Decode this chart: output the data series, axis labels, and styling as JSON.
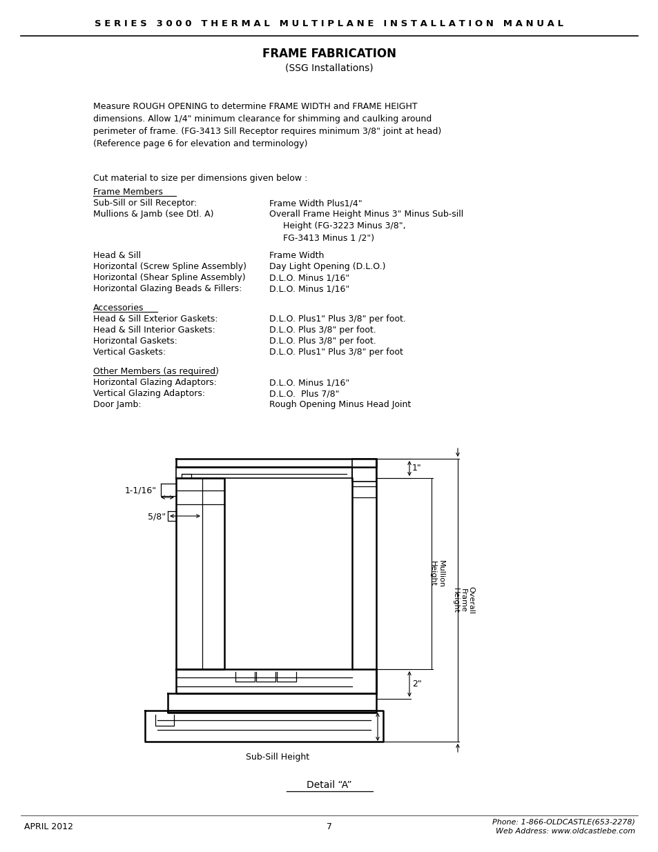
{
  "page_bg": "#ffffff",
  "header_text": "S E R I E S   3 0 0 0   T H E R M A L   M U L T I P L A N E   I N S T A L L A T I O N   M A N U A L",
  "title1": "FRAME FABRICATION",
  "title2": "(SSG Installations)",
  "para1": "Measure ROUGH OPENING to determine FRAME WIDTH and FRAME HEIGHT\ndimensions. Allow 1/4\" minimum clearance for shimming and caulking around\nperimeter of frame. (FG-3413 Sill Receptor requires minimum 3/8\" joint at head)\n(Reference page 6 for elevation and terminology)",
  "cut_intro": "Cut material to size per dimensions given below :",
  "section1_header": "Frame Members",
  "rows1": [
    [
      "Sub-Sill or Sill Receptor:",
      "Frame Width Plus1/4\""
    ],
    [
      "Mullions & Jamb (see Dtl. A)",
      "Overall Frame Height Minus 3\" Minus Sub-sill\n     Height (FG-3223 Minus 3/8\",\n     FG-3413 Minus 1 /2\")"
    ]
  ],
  "rows2": [
    [
      "Head & Sill",
      "Frame Width"
    ],
    [
      "Horizontal (Screw Spline Assembly)",
      "Day Light Opening (D.L.O.)"
    ],
    [
      "Horizontal (Shear Spline Assembly)",
      "D.L.O. Minus 1/16\""
    ],
    [
      "Horizontal Glazing Beads & Fillers:",
      "D.L.O. Minus 1/16\""
    ]
  ],
  "section2_header": "Accessories",
  "rows3": [
    [
      "Head & Sill Exterior Gaskets:",
      "D.L.O. Plus1\" Plus 3/8\" per foot."
    ],
    [
      "Head & Sill Interior Gaskets:",
      "D.L.O. Plus 3/8\" per foot."
    ],
    [
      "Horizontal Gaskets:",
      "D.L.O. Plus 3/8\" per foot."
    ],
    [
      "Vertical Gaskets:",
      "D.L.O. Plus1\" Plus 3/8\" per foot"
    ]
  ],
  "section3_header": "Other Members (as required)",
  "rows4": [
    [
      "Horizontal Glazing Adaptors:",
      "D.L.O. Minus 1/16\""
    ],
    [
      "Vertical Glazing Adaptors:",
      "D.L.O.  Plus 7/8\""
    ],
    [
      "Door Jamb:",
      "Rough Opening Minus Head Joint"
    ]
  ],
  "detail_label": "Detail “A”",
  "footer_left": "APRIL 2012",
  "footer_center": "7",
  "footer_right": "Phone: 1-866-OLDCASTLE(653-2278)\nWeb Address: www.oldcastlebe.com",
  "annot_1in": "1\"",
  "annot_116": "1-1/16\"",
  "annot_58": "5/8\"",
  "annot_2in": "2\"",
  "annot_mullion": "Mullion\nHeight",
  "annot_overall": "Overall\nFrame\nHeight",
  "annot_subsill": "Sub-Sill Height"
}
